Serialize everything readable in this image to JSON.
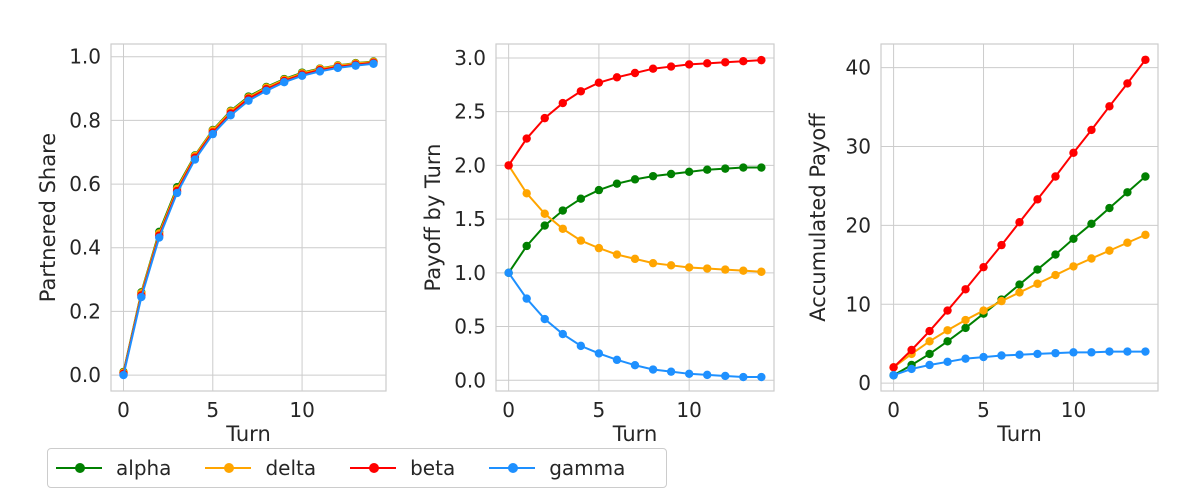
{
  "chart_data": [
    {
      "type": "line",
      "ylabel": "Partnered Share",
      "xlabel": "Turn",
      "xlim": [
        -0.7,
        14.7
      ],
      "ylim": [
        -0.05,
        1.04
      ],
      "xticks": [
        0,
        5,
        10
      ],
      "yticks": [
        0.0,
        0.2,
        0.4,
        0.6,
        0.8,
        1.0
      ],
      "ytick_labels": [
        "0.0",
        "0.2",
        "0.4",
        "0.6",
        "0.8",
        "1.0"
      ],
      "grid": true,
      "x": [
        0,
        1,
        2,
        3,
        4,
        5,
        6,
        7,
        8,
        9,
        10,
        11,
        12,
        13,
        14
      ],
      "series": [
        {
          "name": "alpha",
          "values": [
            0.01,
            0.26,
            0.45,
            0.59,
            0.69,
            0.77,
            0.83,
            0.875,
            0.905,
            0.93,
            0.95,
            0.963,
            0.973,
            0.98,
            0.985
          ]
        },
        {
          "name": "delta",
          "values": [
            0.008,
            0.257,
            0.445,
            0.585,
            0.688,
            0.768,
            0.828,
            0.872,
            0.903,
            0.928,
            0.948,
            0.962,
            0.972,
            0.979,
            0.984
          ]
        },
        {
          "name": "beta",
          "values": [
            0.004,
            0.25,
            0.438,
            0.578,
            0.683,
            0.762,
            0.822,
            0.868,
            0.898,
            0.924,
            0.944,
            0.958,
            0.968,
            0.975,
            0.981
          ]
        },
        {
          "name": "gamma",
          "values": [
            0.0,
            0.245,
            0.432,
            0.572,
            0.677,
            0.757,
            0.816,
            0.862,
            0.893,
            0.92,
            0.94,
            0.954,
            0.965,
            0.972,
            0.978
          ]
        }
      ]
    },
    {
      "type": "line",
      "ylabel": "Payoff by Turn",
      "xlabel": "Turn",
      "xlim": [
        -0.7,
        14.7
      ],
      "ylim": [
        -0.1,
        3.13
      ],
      "xticks": [
        0,
        5,
        10
      ],
      "yticks": [
        0.0,
        0.5,
        1.0,
        1.5,
        2.0,
        2.5,
        3.0
      ],
      "ytick_labels": [
        "0.0",
        "0.5",
        "1.0",
        "1.5",
        "2.0",
        "2.5",
        "3.0"
      ],
      "grid": true,
      "x": [
        0,
        1,
        2,
        3,
        4,
        5,
        6,
        7,
        8,
        9,
        10,
        11,
        12,
        13,
        14
      ],
      "series": [
        {
          "name": "alpha",
          "values": [
            1.0,
            1.25,
            1.44,
            1.58,
            1.69,
            1.77,
            1.83,
            1.87,
            1.9,
            1.92,
            1.94,
            1.96,
            1.97,
            1.98,
            1.98
          ]
        },
        {
          "name": "delta",
          "values": [
            2.0,
            1.74,
            1.55,
            1.41,
            1.3,
            1.23,
            1.17,
            1.13,
            1.09,
            1.07,
            1.05,
            1.04,
            1.03,
            1.02,
            1.01
          ]
        },
        {
          "name": "beta",
          "values": [
            2.0,
            2.25,
            2.44,
            2.58,
            2.69,
            2.77,
            2.82,
            2.86,
            2.9,
            2.92,
            2.94,
            2.95,
            2.96,
            2.97,
            2.98
          ]
        },
        {
          "name": "gamma",
          "values": [
            1.0,
            0.76,
            0.57,
            0.43,
            0.32,
            0.25,
            0.19,
            0.14,
            0.1,
            0.08,
            0.06,
            0.05,
            0.04,
            0.03,
            0.03
          ]
        }
      ]
    },
    {
      "type": "line",
      "ylabel": "Accumulated Payoff",
      "xlabel": "Turn",
      "xlim": [
        -0.7,
        14.7
      ],
      "ylim": [
        -1.0,
        43.0
      ],
      "xticks": [
        0,
        5,
        10
      ],
      "yticks": [
        0,
        10,
        20,
        30,
        40
      ],
      "ytick_labels": [
        "0",
        "10",
        "20",
        "30",
        "40"
      ],
      "grid": true,
      "x": [
        0,
        1,
        2,
        3,
        4,
        5,
        6,
        7,
        8,
        9,
        10,
        11,
        12,
        13,
        14
      ],
      "series": [
        {
          "name": "alpha",
          "values": [
            1.0,
            2.3,
            3.7,
            5.3,
            7.0,
            8.8,
            10.6,
            12.5,
            14.4,
            16.3,
            18.3,
            20.2,
            22.2,
            24.2,
            26.2
          ]
        },
        {
          "name": "delta",
          "values": [
            2.0,
            3.7,
            5.3,
            6.7,
            8.0,
            9.2,
            10.4,
            11.5,
            12.6,
            13.7,
            14.8,
            15.8,
            16.8,
            17.8,
            18.8
          ]
        },
        {
          "name": "beta",
          "values": [
            2.0,
            4.2,
            6.6,
            9.2,
            11.9,
            14.7,
            17.5,
            20.4,
            23.3,
            26.2,
            29.2,
            32.1,
            35.1,
            38.0,
            41.0
          ]
        },
        {
          "name": "gamma",
          "values": [
            1.0,
            1.8,
            2.3,
            2.7,
            3.1,
            3.3,
            3.5,
            3.6,
            3.7,
            3.8,
            3.9,
            3.9,
            4.0,
            4.0,
            4.0
          ]
        }
      ]
    }
  ],
  "legend": {
    "placement": "bottom-left",
    "items": [
      {
        "label": "alpha",
        "color": "#008000"
      },
      {
        "label": "delta",
        "color": "#ffa500"
      },
      {
        "label": "beta",
        "color": "#ff0000"
      },
      {
        "label": "gamma",
        "color": "#1e90ff"
      }
    ]
  }
}
